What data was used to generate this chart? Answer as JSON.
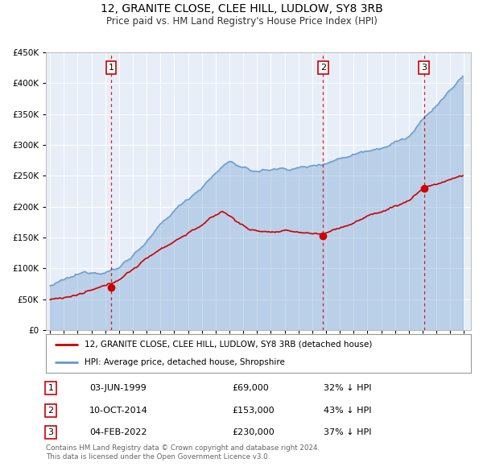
{
  "title": "12, GRANITE CLOSE, CLEE HILL, LUDLOW, SY8 3RB",
  "subtitle": "Price paid vs. HM Land Registry's House Price Index (HPI)",
  "legend_line1": "12, GRANITE CLOSE, CLEE HILL, LUDLOW, SY8 3RB (detached house)",
  "legend_line2": "HPI: Average price, detached house, Shropshire",
  "red_color": "#cc0000",
  "blue_color": "#6699cc",
  "blue_fill": "#ddeeff",
  "background_color": "#e8eef8",
  "sale_points": [
    {
      "date_num": 1999.42,
      "value": 69000,
      "label": "1"
    },
    {
      "date_num": 2014.78,
      "value": 153000,
      "label": "2"
    },
    {
      "date_num": 2022.09,
      "value": 230000,
      "label": "3"
    }
  ],
  "table_data": [
    [
      "1",
      "03-JUN-1999",
      "£69,000",
      "32% ↓ HPI"
    ],
    [
      "2",
      "10-OCT-2014",
      "£153,000",
      "43% ↓ HPI"
    ],
    [
      "3",
      "04-FEB-2022",
      "£230,000",
      "37% ↓ HPI"
    ]
  ],
  "footer_text": "Contains HM Land Registry data © Crown copyright and database right 2024.\nThis data is licensed under the Open Government Licence v3.0.",
  "ylim": [
    0,
    450000
  ],
  "xlim_start": 1994.7,
  "xlim_end": 2025.5,
  "ytick_step": 50000
}
